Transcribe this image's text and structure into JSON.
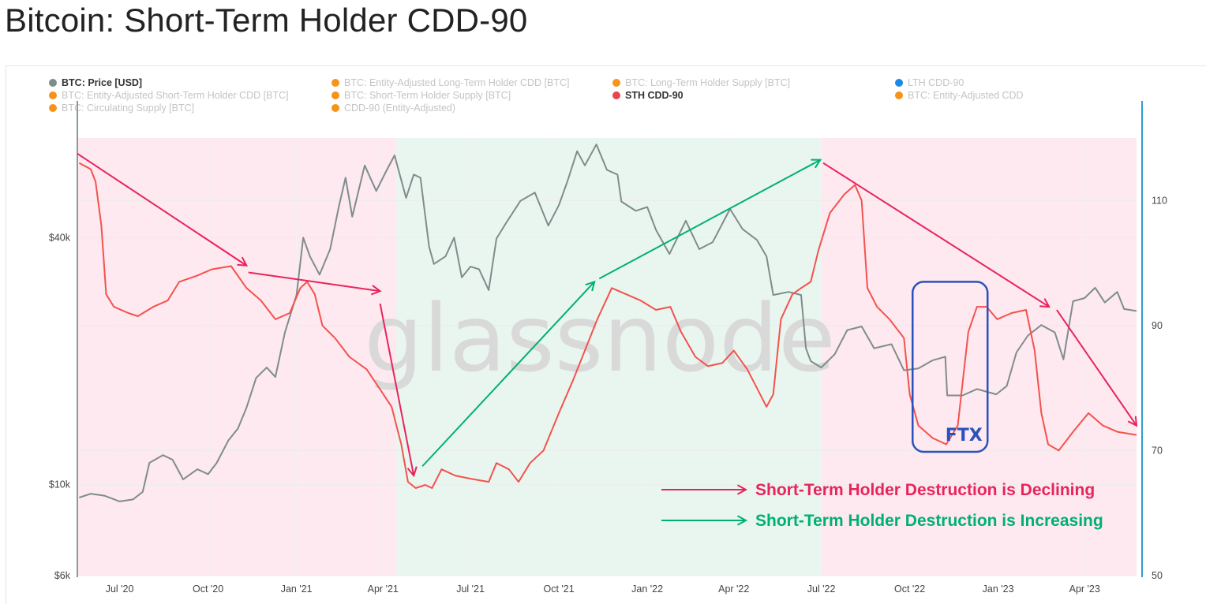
{
  "page": {
    "title": "Bitcoin: Short-Term Holder CDD-90"
  },
  "legend": [
    {
      "label": "BTC: Price [USD]",
      "color": "#7f8c8d",
      "active": true
    },
    {
      "label": "BTC: Entity-Adjusted Long-Term Holder CDD [BTC]",
      "color": "#f7931a",
      "active": false
    },
    {
      "label": "BTC: Long-Term Holder Supply [BTC]",
      "color": "#f7931a",
      "active": false
    },
    {
      "label": "LTH CDD-90",
      "color": "#1e88e5",
      "active": false
    },
    {
      "label": "BTC: Entity-Adjusted Short-Term Holder CDD [BTC]",
      "color": "#f7931a",
      "active": false
    },
    {
      "label": "BTC: Short-Term Holder Supply [BTC]",
      "color": "#f7931a",
      "active": false
    },
    {
      "label": "STH CDD-90",
      "color": "#e8454f",
      "active": true
    },
    {
      "label": "BTC: Entity-Adjusted CDD",
      "color": "#f7931a",
      "active": false
    },
    {
      "label": "BTC: Circulating Supply [BTC]",
      "color": "#f7931a",
      "active": false
    },
    {
      "label": "CDD-90 (Entity-Adjusted)",
      "color": "#f7931a",
      "active": false
    }
  ],
  "watermark": "glassnode",
  "chart_data": {
    "type": "line",
    "title": "Bitcoin: Short-Term Holder CDD-90",
    "x_ticks": [
      "Jul '20",
      "Oct '20",
      "Jan '21",
      "Apr '21",
      "Jul '21",
      "Oct '21",
      "Jan '22",
      "Apr '22",
      "Jul '22",
      "Oct '22",
      "Jan '23",
      "Apr '23"
    ],
    "y_left": {
      "scale": "log",
      "ticks": [
        "$6k",
        "$10k",
        "$40k"
      ],
      "range": [
        6000,
        70000
      ]
    },
    "y_right": {
      "scale": "linear",
      "ticks": [
        "50",
        "70",
        "90",
        "110"
      ],
      "range": [
        50,
        120
      ]
    },
    "x_range": [
      "2020-05-18",
      "2023-05-25"
    ],
    "regions": [
      {
        "from": "2020-05-18",
        "to": "2021-04-15",
        "color": "#fde9ef",
        "meaning": "declining"
      },
      {
        "from": "2021-04-15",
        "to": "2022-07-01",
        "color": "#e9f6ef",
        "meaning": "increasing"
      },
      {
        "from": "2022-07-01",
        "to": "2023-05-25",
        "color": "#fde9ef",
        "meaning": "declining"
      }
    ],
    "series": [
      {
        "name": "BTC: Price [USD]",
        "axis": "left",
        "color": "#7f8c8d",
        "points": [
          [
            "2020-05-20",
            9300
          ],
          [
            "2020-06-01",
            9500
          ],
          [
            "2020-06-15",
            9400
          ],
          [
            "2020-07-01",
            9100
          ],
          [
            "2020-07-15",
            9200
          ],
          [
            "2020-07-25",
            9600
          ],
          [
            "2020-08-01",
            11300
          ],
          [
            "2020-08-15",
            11800
          ],
          [
            "2020-08-25",
            11500
          ],
          [
            "2020-09-05",
            10300
          ],
          [
            "2020-09-20",
            10900
          ],
          [
            "2020-10-01",
            10600
          ],
          [
            "2020-10-10",
            11300
          ],
          [
            "2020-10-22",
            12800
          ],
          [
            "2020-11-01",
            13700
          ],
          [
            "2020-11-10",
            15400
          ],
          [
            "2020-11-20",
            18200
          ],
          [
            "2020-12-01",
            19300
          ],
          [
            "2020-12-10",
            18300
          ],
          [
            "2020-12-20",
            23500
          ],
          [
            "2021-01-01",
            29000
          ],
          [
            "2021-01-08",
            40000
          ],
          [
            "2021-01-15",
            36000
          ],
          [
            "2021-01-25",
            32500
          ],
          [
            "2021-02-05",
            37500
          ],
          [
            "2021-02-14",
            47500
          ],
          [
            "2021-02-21",
            56000
          ],
          [
            "2021-02-28",
            45000
          ],
          [
            "2021-03-13",
            60000
          ],
          [
            "2021-03-25",
            52000
          ],
          [
            "2021-04-05",
            58500
          ],
          [
            "2021-04-13",
            63500
          ],
          [
            "2021-04-25",
            50000
          ],
          [
            "2021-05-03",
            57000
          ],
          [
            "2021-05-10",
            56000
          ],
          [
            "2021-05-19",
            38000
          ],
          [
            "2021-05-24",
            34500
          ],
          [
            "2021-06-05",
            36000
          ],
          [
            "2021-06-14",
            40000
          ],
          [
            "2021-06-22",
            32000
          ],
          [
            "2021-07-01",
            34000
          ],
          [
            "2021-07-10",
            33500
          ],
          [
            "2021-07-20",
            29800
          ],
          [
            "2021-07-28",
            39800
          ],
          [
            "2021-08-08",
            43800
          ],
          [
            "2021-08-22",
            49200
          ],
          [
            "2021-09-06",
            51500
          ],
          [
            "2021-09-20",
            42800
          ],
          [
            "2021-10-01",
            48000
          ],
          [
            "2021-10-10",
            55000
          ],
          [
            "2021-10-20",
            65000
          ],
          [
            "2021-10-28",
            60000
          ],
          [
            "2021-11-09",
            67500
          ],
          [
            "2021-11-20",
            58500
          ],
          [
            "2021-12-01",
            57000
          ],
          [
            "2021-12-05",
            49000
          ],
          [
            "2021-12-20",
            46500
          ],
          [
            "2022-01-01",
            47500
          ],
          [
            "2022-01-10",
            41800
          ],
          [
            "2022-01-24",
            36500
          ],
          [
            "2022-02-10",
            44000
          ],
          [
            "2022-02-24",
            37500
          ],
          [
            "2022-03-10",
            39000
          ],
          [
            "2022-03-28",
            47000
          ],
          [
            "2022-04-10",
            42000
          ],
          [
            "2022-04-25",
            39500
          ],
          [
            "2022-05-05",
            36000
          ],
          [
            "2022-05-12",
            29000
          ],
          [
            "2022-05-28",
            29500
          ],
          [
            "2022-06-10",
            29000
          ],
          [
            "2022-06-15",
            21500
          ],
          [
            "2022-06-20",
            20000
          ],
          [
            "2022-07-01",
            19300
          ],
          [
            "2022-07-15",
            20800
          ],
          [
            "2022-07-28",
            23800
          ],
          [
            "2022-08-12",
            24300
          ],
          [
            "2022-08-25",
            21500
          ],
          [
            "2022-09-12",
            22000
          ],
          [
            "2022-09-25",
            19000
          ],
          [
            "2022-10-10",
            19200
          ],
          [
            "2022-10-25",
            20100
          ],
          [
            "2022-11-07",
            20500
          ],
          [
            "2022-11-09",
            16500
          ],
          [
            "2022-11-25",
            16500
          ],
          [
            "2022-12-10",
            17100
          ],
          [
            "2022-12-30",
            16600
          ],
          [
            "2023-01-10",
            17400
          ],
          [
            "2023-01-20",
            21000
          ],
          [
            "2023-02-01",
            23100
          ],
          [
            "2023-02-15",
            24500
          ],
          [
            "2023-03-01",
            23500
          ],
          [
            "2023-03-10",
            20200
          ],
          [
            "2023-03-20",
            28000
          ],
          [
            "2023-04-01",
            28500
          ],
          [
            "2023-04-12",
            30200
          ],
          [
            "2023-04-22",
            27800
          ],
          [
            "2023-05-05",
            29500
          ],
          [
            "2023-05-12",
            26800
          ],
          [
            "2023-05-25",
            26500
          ]
        ]
      },
      {
        "name": "STH CDD-90",
        "axis": "right",
        "color": "#f4524e",
        "points": [
          [
            "2020-05-20",
            116
          ],
          [
            "2020-06-01",
            115
          ],
          [
            "2020-06-06",
            113
          ],
          [
            "2020-06-12",
            106
          ],
          [
            "2020-06-17",
            95
          ],
          [
            "2020-06-25",
            93
          ],
          [
            "2020-07-10",
            92
          ],
          [
            "2020-07-20",
            91.5
          ],
          [
            "2020-08-05",
            93
          ],
          [
            "2020-08-20",
            94
          ],
          [
            "2020-09-01",
            97
          ],
          [
            "2020-09-20",
            98
          ],
          [
            "2020-10-05",
            99
          ],
          [
            "2020-10-25",
            99.5
          ],
          [
            "2020-11-10",
            96
          ],
          [
            "2020-11-25",
            94
          ],
          [
            "2020-12-10",
            91
          ],
          [
            "2020-12-25",
            92
          ],
          [
            "2021-01-05",
            96
          ],
          [
            "2021-01-12",
            97
          ],
          [
            "2021-01-20",
            95
          ],
          [
            "2021-01-28",
            90
          ],
          [
            "2021-02-10",
            88
          ],
          [
            "2021-02-25",
            85
          ],
          [
            "2021-03-15",
            83
          ],
          [
            "2021-03-28",
            80
          ],
          [
            "2021-04-10",
            77
          ],
          [
            "2021-04-20",
            71
          ],
          [
            "2021-04-27",
            65
          ],
          [
            "2021-05-05",
            64
          ],
          [
            "2021-05-15",
            64.5
          ],
          [
            "2021-05-22",
            64
          ],
          [
            "2021-06-01",
            67
          ],
          [
            "2021-06-15",
            66
          ],
          [
            "2021-07-01",
            65.5
          ],
          [
            "2021-07-20",
            65
          ],
          [
            "2021-07-28",
            68
          ],
          [
            "2021-08-10",
            67
          ],
          [
            "2021-08-20",
            65
          ],
          [
            "2021-09-01",
            68
          ],
          [
            "2021-09-15",
            70
          ],
          [
            "2021-10-01",
            76
          ],
          [
            "2021-10-15",
            81
          ],
          [
            "2021-10-28",
            86
          ],
          [
            "2021-11-10",
            91
          ],
          [
            "2021-11-25",
            96
          ],
          [
            "2021-12-10",
            95
          ],
          [
            "2021-12-25",
            94
          ],
          [
            "2022-01-10",
            92.5
          ],
          [
            "2022-01-25",
            93
          ],
          [
            "2022-02-05",
            89
          ],
          [
            "2022-02-20",
            85
          ],
          [
            "2022-03-05",
            83.5
          ],
          [
            "2022-03-20",
            84
          ],
          [
            "2022-04-01",
            86
          ],
          [
            "2022-04-15",
            83
          ],
          [
            "2022-04-25",
            80
          ],
          [
            "2022-05-05",
            77
          ],
          [
            "2022-05-12",
            79
          ],
          [
            "2022-05-20",
            91
          ],
          [
            "2022-06-01",
            95
          ],
          [
            "2022-06-10",
            96
          ],
          [
            "2022-06-20",
            97
          ],
          [
            "2022-06-28",
            102
          ],
          [
            "2022-07-10",
            108
          ],
          [
            "2022-07-25",
            111
          ],
          [
            "2022-08-05",
            112.5
          ],
          [
            "2022-08-12",
            110
          ],
          [
            "2022-08-18",
            96
          ],
          [
            "2022-08-28",
            93
          ],
          [
            "2022-09-10",
            91
          ],
          [
            "2022-09-25",
            88
          ],
          [
            "2022-10-01",
            79
          ],
          [
            "2022-10-10",
            74
          ],
          [
            "2022-10-25",
            72
          ],
          [
            "2022-11-08",
            71
          ],
          [
            "2022-11-20",
            74
          ],
          [
            "2022-12-01",
            89
          ],
          [
            "2022-12-10",
            93
          ],
          [
            "2022-12-20",
            93
          ],
          [
            "2022-12-31",
            91
          ],
          [
            "2023-01-15",
            92
          ],
          [
            "2023-01-30",
            92.5
          ],
          [
            "2023-02-08",
            86
          ],
          [
            "2023-02-15",
            76
          ],
          [
            "2023-02-22",
            71
          ],
          [
            "2023-03-05",
            70
          ],
          [
            "2023-03-20",
            73
          ],
          [
            "2023-04-05",
            76
          ],
          [
            "2023-04-20",
            74
          ],
          [
            "2023-05-05",
            73
          ],
          [
            "2023-05-25",
            72.5
          ]
        ]
      }
    ],
    "annotations": [
      {
        "type": "arrow",
        "color": "#e8245c",
        "from": [
          "2020-05-18",
          117.5
        ],
        "to": [
          "2020-11-10",
          99.6
        ]
      },
      {
        "type": "arrow",
        "color": "#e8245c",
        "from": [
          "2020-11-12",
          98.5
        ],
        "to": [
          "2021-03-29",
          95.5
        ]
      },
      {
        "type": "arrow",
        "color": "#e8245c",
        "from": [
          "2021-03-29",
          93.5
        ],
        "to": [
          "2021-05-03",
          66
        ]
      },
      {
        "type": "arrow",
        "color": "#00b073",
        "from": [
          "2021-05-12",
          67.5
        ],
        "to": [
          "2021-11-07",
          97
        ]
      },
      {
        "type": "arrow",
        "color": "#00b073",
        "from": [
          "2021-11-12",
          97.5
        ],
        "to": [
          "2022-06-30",
          116.5
        ]
      },
      {
        "type": "arrow",
        "color": "#e8245c",
        "from": [
          "2022-07-03",
          116
        ],
        "to": [
          "2023-02-23",
          93
        ]
      },
      {
        "type": "arrow",
        "color": "#e8245c",
        "from": [
          "2023-03-03",
          92.5
        ],
        "to": [
          "2023-05-25",
          74
        ]
      },
      {
        "type": "box",
        "color": "#2a52be",
        "label": "FTX",
        "from": [
          "2022-10-04",
          97
        ],
        "to": [
          "2022-12-21",
          69.8
        ]
      }
    ],
    "legend_notes": [
      {
        "text": "Short-Term Holder Destruction is Declining",
        "color": "#e8245c"
      },
      {
        "text": "Short-Term Holder Destruction is Increasing",
        "color": "#00b073"
      }
    ]
  }
}
